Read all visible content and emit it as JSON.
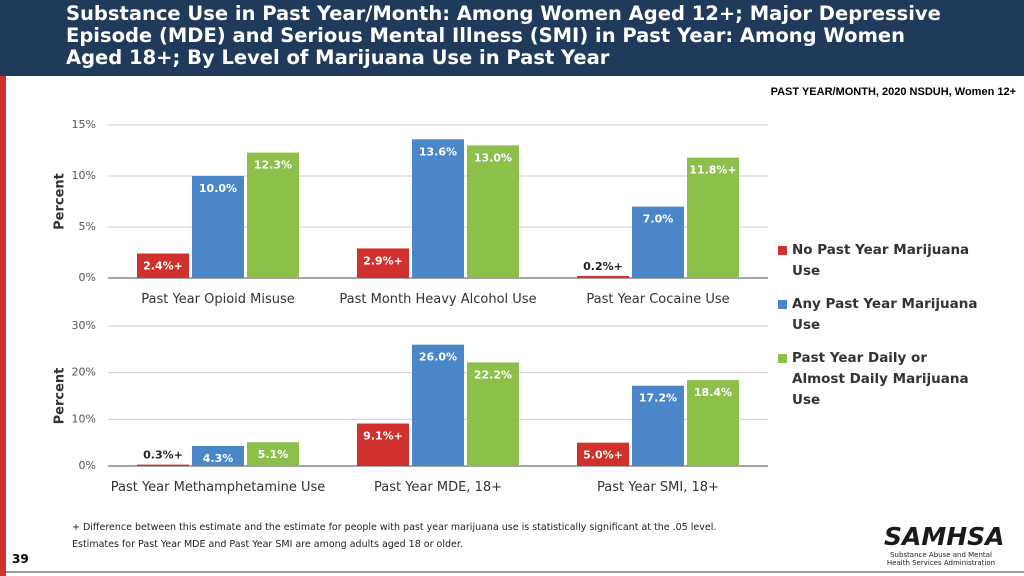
{
  "header": {
    "title": "Substance Use in Past Year/Month: Among Women Aged 12+; Major Depressive Episode (MDE) and Serious Mental Illness (SMI) in Past Year: Among Women Aged 18+; By Level of Marijuana Use in Past Year",
    "subtitle": "PAST YEAR/MONTH, 2020 NSDUH, Women 12+"
  },
  "chart_data": [
    {
      "type": "bar",
      "ylabel": "Percent",
      "categories": [
        "Past Year Opioid Misuse",
        "Past Month Heavy Alcohol Use",
        "Past Year Cocaine Use"
      ],
      "series": [
        {
          "name": "No Past Year Marijuana Use",
          "color": "#d0312d",
          "values": [
            2.4,
            2.9,
            0.2
          ],
          "value_labels": [
            "2.4%+",
            "2.9%+",
            "0.2%+"
          ]
        },
        {
          "name": "Any Past Year Marijuana Use",
          "color": "#4a86c8",
          "values": [
            10.0,
            13.6,
            7.0
          ],
          "value_labels": [
            "10.0%",
            "13.6%",
            "7.0%"
          ]
        },
        {
          "name": "Past Year Daily or Almost Daily Marijuana Use",
          "color": "#8cc04b",
          "values": [
            12.3,
            13.0,
            11.8
          ],
          "value_labels": [
            "12.3%",
            "13.0%",
            "11.8%+"
          ]
        }
      ],
      "ylim": [
        0,
        15
      ],
      "yticks": [
        {
          "value": 0,
          "label": "0%"
        },
        {
          "value": 5,
          "label": "5%"
        },
        {
          "value": 10,
          "label": "10%"
        },
        {
          "value": 15,
          "label": "15%"
        }
      ],
      "grid": true,
      "legend": "right"
    },
    {
      "type": "bar",
      "ylabel": "Percent",
      "categories": [
        "Past Year Methamphetamine Use",
        "Past Year MDE, 18+",
        "Past Year SMI, 18+"
      ],
      "series": [
        {
          "color": "#d0312d",
          "values": [
            0.3,
            9.1,
            5.0
          ],
          "value_labels": [
            "0.3%+",
            "9.1%+",
            "5.0%+"
          ]
        },
        {
          "color": "#4a86c8",
          "values": [
            4.3,
            26.0,
            17.2
          ],
          "value_labels": [
            "4.3%",
            "26.0%",
            "17.2%"
          ]
        },
        {
          "color": "#8cc04b",
          "values": [
            5.1,
            22.2,
            18.4
          ],
          "value_labels": [
            "5.1%",
            "22.2%",
            "18.4%"
          ]
        }
      ],
      "ylim": [
        0,
        30
      ],
      "yticks": [
        {
          "value": 0,
          "label": "0%"
        },
        {
          "value": 10,
          "label": "10%"
        },
        {
          "value": 20,
          "label": "20%"
        },
        {
          "value": 30,
          "label": "30%"
        }
      ],
      "grid": true
    }
  ],
  "footnotes": [
    "+ Difference between this estimate and the estimate for people with past year marijuana use is statistically significant at the .05 level.",
    "Estimates for Past Year MDE and Past Year SMI are among adults aged 18 or older."
  ],
  "page_number": "39",
  "logo": {
    "name": "SAMHSA",
    "tagline": "Substance Abuse and Mental Health Services Administration"
  }
}
